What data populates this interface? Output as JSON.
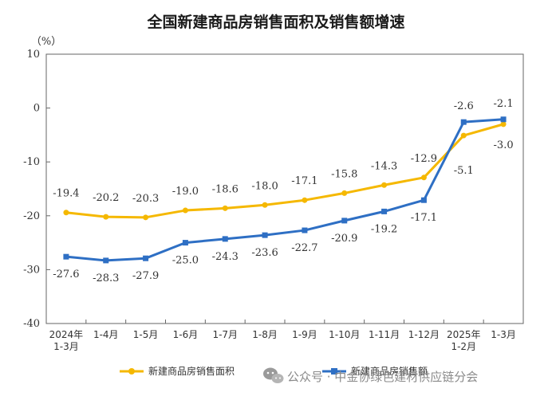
{
  "chart_data": {
    "type": "line",
    "title": "全国新建商品房销售面积及销售额增速",
    "unit_label": "（%）",
    "ylim": [
      -40,
      10
    ],
    "yticks": [
      10,
      0,
      -10,
      -20,
      -30,
      -40
    ],
    "categories": [
      [
        "2024年",
        "1-3月"
      ],
      [
        "1-4月"
      ],
      [
        "1-5月"
      ],
      [
        "1-6月"
      ],
      [
        "1-7月"
      ],
      [
        "1-8月"
      ],
      [
        "1-9月"
      ],
      [
        "1-10月"
      ],
      [
        "1-11月"
      ],
      [
        "1-12月"
      ],
      [
        "2025年",
        "1-2月"
      ],
      [
        "1-3月"
      ]
    ],
    "series": [
      {
        "name": "新建商品房销售面积",
        "color": "#F5B800",
        "values": [
          -19.4,
          -20.2,
          -20.3,
          -19.0,
          -18.6,
          -18.0,
          -17.1,
          -15.8,
          -14.3,
          -12.9,
          -5.1,
          -3.0
        ],
        "labels": [
          "-19.4",
          "-20.2",
          "-20.3",
          "-19.0",
          "-18.6",
          "-18.0",
          "-17.1",
          "-15.8",
          "-14.3",
          "-12.9",
          "-5.1",
          "-3.0"
        ]
      },
      {
        "name": "新建商品房销售额",
        "color": "#2E6FC4",
        "values": [
          -27.6,
          -28.3,
          -27.9,
          -25.0,
          -24.3,
          -23.6,
          -22.7,
          -20.9,
          -19.2,
          -17.1,
          -2.6,
          -2.1
        ],
        "labels": [
          "-27.6",
          "-28.3",
          "-27.9",
          "-25.0",
          "-24.3",
          "-23.6",
          "-22.7",
          "-20.9",
          "-19.2",
          "-17.1",
          "-2.6",
          "-2.1"
        ]
      }
    ],
    "grid": false,
    "legend_position": "bottom-left"
  },
  "watermark": {
    "text": "公众号 · 中金协绿色建材供应链分会",
    "icon": "wechat-icon",
    "color": "#8a8a8a"
  }
}
